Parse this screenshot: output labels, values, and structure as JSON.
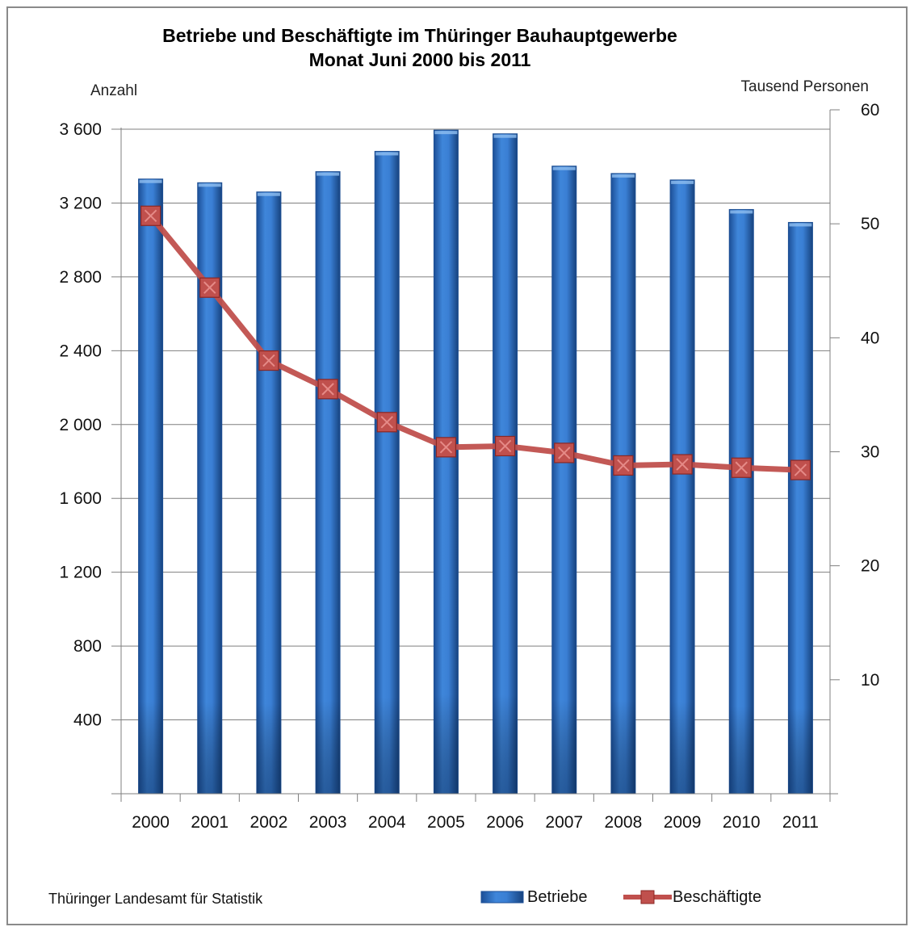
{
  "chart_data": {
    "type": "bar",
    "title": "Betriebe und Beschäftigte im Thüringer Bauhauptgewerbe",
    "subtitle": "Monat Juni 2000 bis 2011",
    "ylabel": "Anzahl",
    "y2label": "Tausend Personen",
    "categories": [
      "2000",
      "2001",
      "2002",
      "2003",
      "2004",
      "2005",
      "2006",
      "2007",
      "2008",
      "2009",
      "2010",
      "2011"
    ],
    "ylim": [
      0,
      3600
    ],
    "yticks": [
      {
        "value": 400,
        "label": "400"
      },
      {
        "value": 800,
        "label": "800"
      },
      {
        "value": 1200,
        "label": "1 200"
      },
      {
        "value": 1600,
        "label": "1 600"
      },
      {
        "value": 2000,
        "label": "2 000"
      },
      {
        "value": 2400,
        "label": "2 400"
      },
      {
        "value": 2800,
        "label": "2 800"
      },
      {
        "value": 3200,
        "label": "3 200"
      },
      {
        "value": 3600,
        "label": "3 600"
      }
    ],
    "y2lim": [
      0,
      60
    ],
    "y2ticks": [
      {
        "value": 10,
        "label": "10"
      },
      {
        "value": 20,
        "label": "20"
      },
      {
        "value": 30,
        "label": "30"
      },
      {
        "value": 40,
        "label": "40"
      },
      {
        "value": 50,
        "label": "50"
      },
      {
        "value": 60,
        "label": "60"
      }
    ],
    "grid": true,
    "legend_position": "bottom-right",
    "series": [
      {
        "name": "Betriebe",
        "type": "bar",
        "axis": "left",
        "color": "#2e6fc4",
        "values": [
          3330,
          3310,
          3260,
          3370,
          3480,
          3595,
          3575,
          3400,
          3360,
          3325,
          3165,
          3095
        ]
      },
      {
        "name": "Beschäftigte",
        "type": "line",
        "axis": "right",
        "color": "#c0504d",
        "values": [
          50.7,
          44.4,
          38.0,
          35.5,
          32.6,
          30.4,
          30.5,
          29.9,
          28.8,
          28.9,
          28.6,
          28.4
        ]
      }
    ]
  },
  "footer": {
    "source": "Thüringer Landesamt für Statistik"
  }
}
